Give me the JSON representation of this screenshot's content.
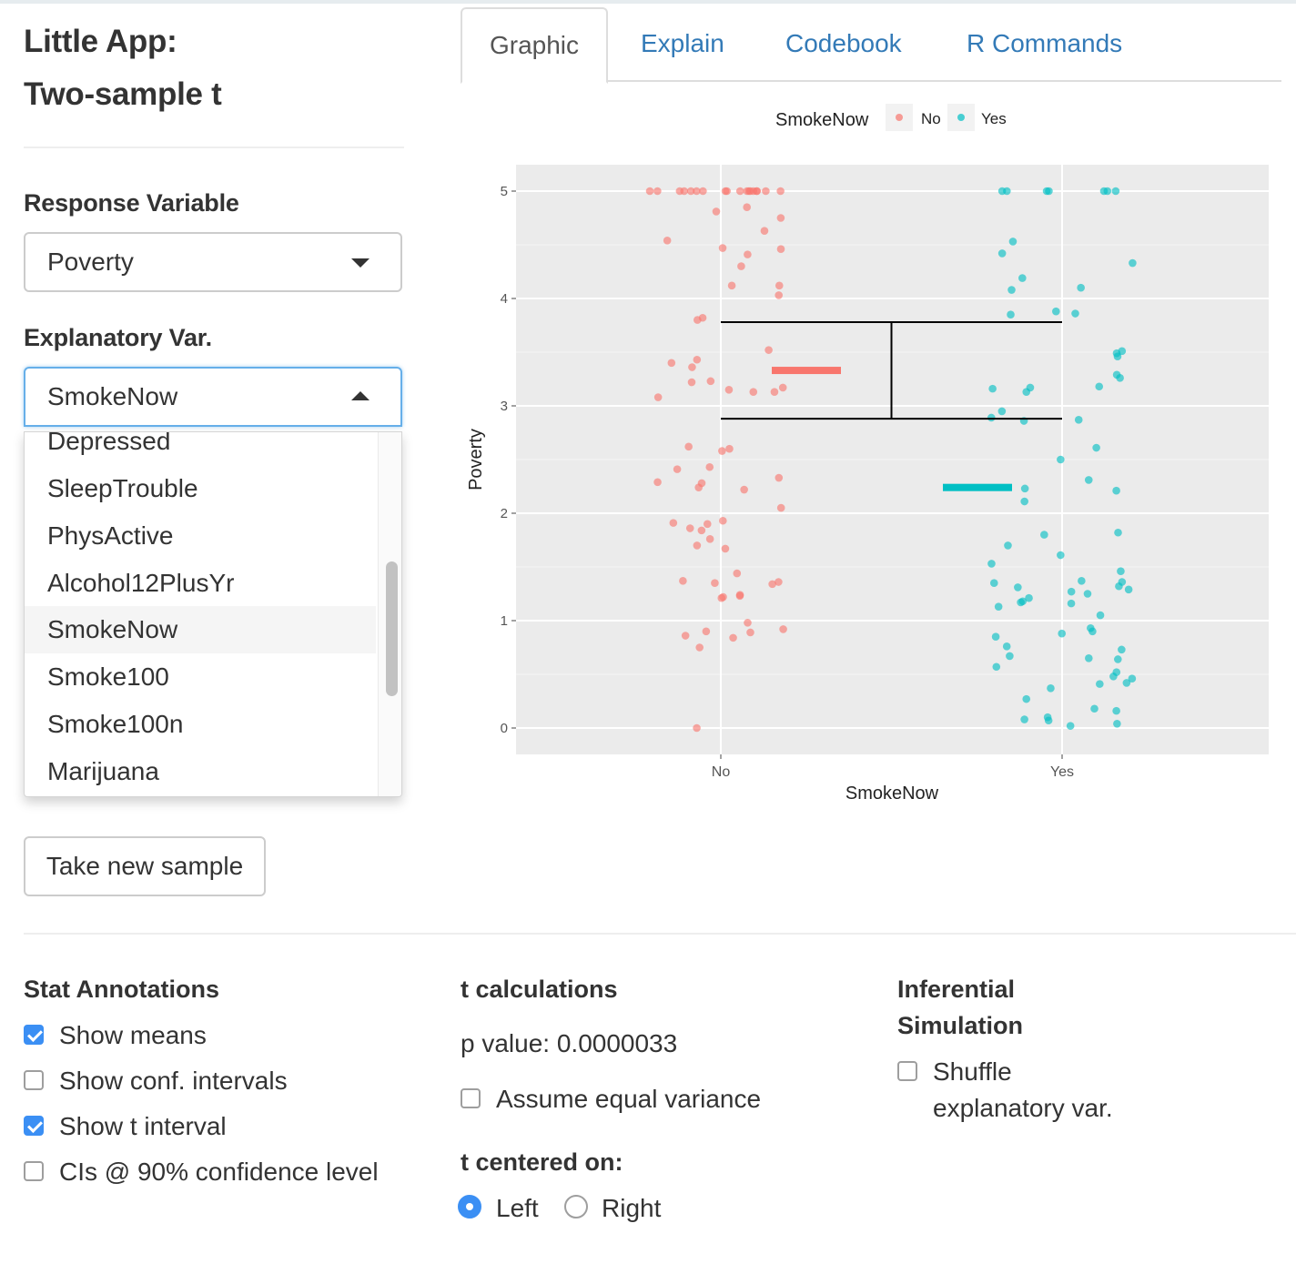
{
  "app": {
    "title_line1": "Little App:",
    "title_line2": "Two-sample t"
  },
  "sidebar": {
    "response_label": "Response Variable",
    "response_value": "Poverty",
    "explanatory_label": "Explanatory Var.",
    "explanatory_value": "SmokeNow",
    "dropdown_options": [
      "Depressed",
      "SleepTrouble",
      "PhysActive",
      "Alcohol12PlusYr",
      "SmokeNow",
      "Smoke100",
      "Smoke100n",
      "Marijuana"
    ],
    "dropdown_selected": "SmokeNow",
    "new_sample_button": "Take new sample"
  },
  "tabs": [
    {
      "label": "Graphic",
      "active": true
    },
    {
      "label": "Explain",
      "active": false
    },
    {
      "label": "Codebook",
      "active": false
    },
    {
      "label": "R Commands",
      "active": false
    }
  ],
  "colors": {
    "no": "#F8766D",
    "yes": "#00BFC4",
    "panel": "#EBEBEB",
    "link": "#337ab7",
    "checkbox": "#3b8ff4"
  },
  "chart_data": {
    "type": "scatter",
    "xlabel": "SmokeNow",
    "ylabel": "Poverty",
    "legend": {
      "title": "SmokeNow",
      "entries": [
        "No",
        "Yes"
      ],
      "position": "top"
    },
    "categories": [
      "No",
      "Yes"
    ],
    "ylim": [
      -0.25,
      5.25
    ],
    "yticks": [
      0,
      1,
      2,
      3,
      4,
      5
    ],
    "grid": true,
    "means": {
      "No": 3.33,
      "Yes": 2.24
    },
    "t_interval": {
      "low": 2.88,
      "high": 3.78
    },
    "series": [
      {
        "name": "No",
        "values": [
          5,
          5,
          5,
          5,
          5,
          5,
          5,
          5,
          5,
          5,
          5,
          5,
          5,
          5,
          5,
          5,
          5,
          5,
          4.85,
          4.81,
          4.75,
          4.63,
          4.54,
          4.47,
          4.46,
          4.41,
          4.3,
          4.12,
          4.12,
          4.03,
          3.82,
          3.8,
          3.52,
          3.43,
          3.4,
          3.36,
          3.23,
          3.22,
          3.17,
          3.15,
          3.13,
          3.13,
          3.08,
          2.62,
          2.6,
          2.58,
          2.43,
          2.41,
          2.33,
          2.29,
          2.28,
          2.24,
          2.22,
          2.05,
          1.93,
          1.91,
          1.9,
          1.86,
          1.84,
          1.76,
          1.7,
          1.67,
          1.44,
          1.37,
          1.36,
          1.35,
          1.34,
          1.24,
          1.23,
          1.22,
          1.21,
          0.98,
          0.92,
          0.9,
          0.89,
          0.86,
          0.84,
          0.75,
          0
        ]
      },
      {
        "name": "Yes",
        "values": [
          5,
          5,
          5,
          5,
          5,
          5,
          5,
          4.53,
          4.42,
          4.33,
          4.19,
          4.1,
          4.08,
          3.88,
          3.86,
          3.85,
          3.51,
          3.49,
          3.46,
          3.29,
          3.26,
          3.18,
          3.17,
          3.16,
          3.13,
          2.95,
          2.89,
          2.87,
          2.86,
          2.61,
          2.5,
          2.31,
          2.23,
          2.21,
          2.11,
          1.8,
          1.82,
          1.7,
          1.61,
          1.53,
          1.46,
          1.37,
          1.36,
          1.35,
          1.32,
          1.31,
          1.29,
          1.27,
          1.25,
          1.21,
          1.18,
          1.17,
          1.16,
          1.13,
          1.05,
          0.93,
          0.9,
          0.88,
          0.85,
          0.76,
          0.73,
          0.67,
          0.65,
          0.64,
          0.57,
          0.52,
          0.48,
          0.46,
          0.42,
          0.41,
          0.37,
          0.27,
          0.18,
          0.16,
          0.1,
          0.08,
          0.07,
          0.04,
          0.02
        ]
      }
    ]
  },
  "stat_annotations": {
    "title": "Stat Annotations",
    "items": [
      {
        "label": "Show means",
        "checked": true
      },
      {
        "label": "Show conf. intervals",
        "checked": false
      },
      {
        "label": "Show t interval",
        "checked": true
      },
      {
        "label": "CIs @ 90% confidence level",
        "checked": false
      }
    ]
  },
  "t_calc": {
    "title": "t calculations",
    "p_value": "p value: 0.0000033",
    "equal_variance": {
      "label": "Assume equal variance",
      "checked": false
    },
    "centered_title": "t centered on:",
    "options": [
      {
        "label": "Left",
        "selected": true
      },
      {
        "label": "Right",
        "selected": false
      }
    ]
  },
  "inferential": {
    "title_line1": "Inferential",
    "title_line2": "Simulation",
    "shuffle_line1": "Shuffle",
    "shuffle_line2": "explanatory var.",
    "shuffle_checked": false
  }
}
